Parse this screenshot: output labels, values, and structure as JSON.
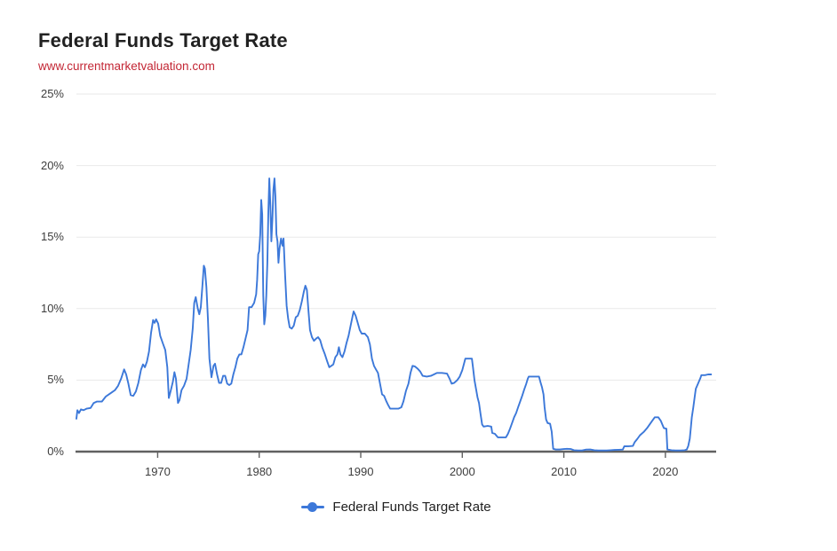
{
  "header": {
    "title": "Federal Funds Target Rate",
    "source_url": "www.currentmarketvaluation.com",
    "menu_icon": "hamburger-icon"
  },
  "legend": {
    "label": "Federal Funds Target Rate",
    "marker_color": "#3c78d9"
  },
  "colors": {
    "line": "#3c78d9",
    "title": "#212121",
    "url": "#c32735",
    "grid": "#e9e9e9",
    "baseline": "#616161",
    "axis_text": "#3d3d3d",
    "menu_icon": "#58595b"
  },
  "chart_data": {
    "type": "line",
    "title": "Federal Funds Target Rate",
    "xlabel": "",
    "ylabel": "",
    "xlim": [
      1962,
      2025
    ],
    "ylim": [
      0,
      25
    ],
    "x_ticks": [
      1970,
      1980,
      1990,
      2000,
      2010,
      2020
    ],
    "x_tick_labels": [
      "1970",
      "1980",
      "1990",
      "2000",
      "2010",
      "2020"
    ],
    "y_ticks": [
      0,
      5,
      10,
      15,
      20,
      25
    ],
    "y_tick_labels": [
      "0%",
      "5%",
      "10%",
      "15%",
      "20%",
      "25%"
    ],
    "grid": "horizontal",
    "legend_position": "bottom",
    "series": [
      {
        "name": "Federal Funds Target Rate",
        "color": "#3c78d9",
        "points": [
          [
            1962.0,
            2.3
          ],
          [
            1962.1,
            2.9
          ],
          [
            1962.25,
            2.7
          ],
          [
            1962.45,
            2.95
          ],
          [
            1962.7,
            2.9
          ],
          [
            1963.0,
            3.0
          ],
          [
            1963.4,
            3.05
          ],
          [
            1963.7,
            3.4
          ],
          [
            1964.0,
            3.5
          ],
          [
            1964.5,
            3.5
          ],
          [
            1964.9,
            3.85
          ],
          [
            1965.3,
            4.05
          ],
          [
            1965.8,
            4.3
          ],
          [
            1966.1,
            4.6
          ],
          [
            1966.4,
            5.1
          ],
          [
            1966.7,
            5.75
          ],
          [
            1966.9,
            5.4
          ],
          [
            1967.1,
            4.8
          ],
          [
            1967.35,
            3.95
          ],
          [
            1967.6,
            3.9
          ],
          [
            1967.85,
            4.2
          ],
          [
            1968.1,
            4.8
          ],
          [
            1968.35,
            5.7
          ],
          [
            1968.55,
            6.1
          ],
          [
            1968.75,
            5.9
          ],
          [
            1968.95,
            6.3
          ],
          [
            1969.15,
            7.0
          ],
          [
            1969.35,
            8.3
          ],
          [
            1969.55,
            9.2
          ],
          [
            1969.7,
            9.0
          ],
          [
            1969.85,
            9.25
          ],
          [
            1970.05,
            8.95
          ],
          [
            1970.25,
            8.1
          ],
          [
            1970.5,
            7.6
          ],
          [
            1970.75,
            7.1
          ],
          [
            1970.95,
            5.9
          ],
          [
            1971.1,
            3.75
          ],
          [
            1971.3,
            4.3
          ],
          [
            1971.5,
            4.9
          ],
          [
            1971.65,
            5.55
          ],
          [
            1971.8,
            5.1
          ],
          [
            1972.0,
            3.4
          ],
          [
            1972.15,
            3.6
          ],
          [
            1972.35,
            4.3
          ],
          [
            1972.6,
            4.6
          ],
          [
            1972.85,
            5.1
          ],
          [
            1973.05,
            6.1
          ],
          [
            1973.25,
            7.1
          ],
          [
            1973.45,
            8.6
          ],
          [
            1973.6,
            10.4
          ],
          [
            1973.75,
            10.8
          ],
          [
            1973.95,
            10.0
          ],
          [
            1974.1,
            9.6
          ],
          [
            1974.25,
            10.1
          ],
          [
            1974.4,
            11.5
          ],
          [
            1974.55,
            13.0
          ],
          [
            1974.65,
            12.8
          ],
          [
            1974.8,
            11.5
          ],
          [
            1974.95,
            9.3
          ],
          [
            1975.1,
            6.5
          ],
          [
            1975.3,
            5.2
          ],
          [
            1975.5,
            6.0
          ],
          [
            1975.65,
            6.15
          ],
          [
            1975.85,
            5.4
          ],
          [
            1976.05,
            4.8
          ],
          [
            1976.25,
            4.8
          ],
          [
            1976.45,
            5.3
          ],
          [
            1976.65,
            5.3
          ],
          [
            1976.85,
            4.75
          ],
          [
            1977.05,
            4.65
          ],
          [
            1977.25,
            4.75
          ],
          [
            1977.45,
            5.4
          ],
          [
            1977.65,
            5.9
          ],
          [
            1977.85,
            6.5
          ],
          [
            1978.05,
            6.8
          ],
          [
            1978.25,
            6.8
          ],
          [
            1978.45,
            7.3
          ],
          [
            1978.65,
            7.9
          ],
          [
            1978.85,
            8.5
          ],
          [
            1979.0,
            10.1
          ],
          [
            1979.25,
            10.1
          ],
          [
            1979.5,
            10.4
          ],
          [
            1979.7,
            11.0
          ],
          [
            1979.8,
            12.0
          ],
          [
            1979.9,
            13.8
          ],
          [
            1980.0,
            14.0
          ],
          [
            1980.1,
            15.2
          ],
          [
            1980.2,
            17.6
          ],
          [
            1980.3,
            16.6
          ],
          [
            1980.4,
            10.9
          ],
          [
            1980.5,
            8.9
          ],
          [
            1980.6,
            9.5
          ],
          [
            1980.7,
            10.9
          ],
          [
            1980.8,
            13.2
          ],
          [
            1980.9,
            16.7
          ],
          [
            1981.0,
            19.1
          ],
          [
            1981.1,
            17.2
          ],
          [
            1981.2,
            14.7
          ],
          [
            1981.3,
            16.3
          ],
          [
            1981.4,
            18.3
          ],
          [
            1981.5,
            19.1
          ],
          [
            1981.6,
            17.8
          ],
          [
            1981.7,
            15.2
          ],
          [
            1981.8,
            14.7
          ],
          [
            1981.9,
            13.2
          ],
          [
            1982.0,
            14.2
          ],
          [
            1982.15,
            14.9
          ],
          [
            1982.3,
            14.4
          ],
          [
            1982.4,
            14.9
          ],
          [
            1982.55,
            12.3
          ],
          [
            1982.7,
            10.2
          ],
          [
            1982.85,
            9.3
          ],
          [
            1983.0,
            8.7
          ],
          [
            1983.2,
            8.6
          ],
          [
            1983.4,
            8.8
          ],
          [
            1983.6,
            9.4
          ],
          [
            1983.8,
            9.5
          ],
          [
            1984.0,
            9.9
          ],
          [
            1984.2,
            10.5
          ],
          [
            1984.4,
            11.2
          ],
          [
            1984.55,
            11.6
          ],
          [
            1984.7,
            11.3
          ],
          [
            1984.85,
            9.9
          ],
          [
            1985.0,
            8.5
          ],
          [
            1985.2,
            8.0
          ],
          [
            1985.4,
            7.75
          ],
          [
            1985.6,
            7.9
          ],
          [
            1985.8,
            8.0
          ],
          [
            1986.0,
            7.8
          ],
          [
            1986.2,
            7.3
          ],
          [
            1986.45,
            6.85
          ],
          [
            1986.7,
            6.3
          ],
          [
            1986.9,
            5.9
          ],
          [
            1987.1,
            6.0
          ],
          [
            1987.3,
            6.1
          ],
          [
            1987.5,
            6.6
          ],
          [
            1987.7,
            6.8
          ],
          [
            1987.85,
            7.3
          ],
          [
            1988.0,
            6.8
          ],
          [
            1988.2,
            6.6
          ],
          [
            1988.4,
            7.0
          ],
          [
            1988.6,
            7.6
          ],
          [
            1988.8,
            8.1
          ],
          [
            1989.0,
            8.8
          ],
          [
            1989.2,
            9.5
          ],
          [
            1989.3,
            9.8
          ],
          [
            1989.5,
            9.5
          ],
          [
            1989.7,
            9.0
          ],
          [
            1989.9,
            8.5
          ],
          [
            1990.1,
            8.25
          ],
          [
            1990.4,
            8.25
          ],
          [
            1990.7,
            8.0
          ],
          [
            1990.9,
            7.5
          ],
          [
            1991.1,
            6.5
          ],
          [
            1991.3,
            6.0
          ],
          [
            1991.5,
            5.75
          ],
          [
            1991.7,
            5.5
          ],
          [
            1991.9,
            4.75
          ],
          [
            1992.1,
            4.0
          ],
          [
            1992.3,
            3.9
          ],
          [
            1992.5,
            3.55
          ],
          [
            1992.7,
            3.25
          ],
          [
            1992.9,
            3.0
          ],
          [
            1993.3,
            3.0
          ],
          [
            1993.7,
            3.0
          ],
          [
            1994.0,
            3.1
          ],
          [
            1994.2,
            3.5
          ],
          [
            1994.45,
            4.25
          ],
          [
            1994.7,
            4.75
          ],
          [
            1994.9,
            5.5
          ],
          [
            1995.1,
            6.0
          ],
          [
            1995.35,
            5.95
          ],
          [
            1995.6,
            5.8
          ],
          [
            1995.85,
            5.6
          ],
          [
            1996.1,
            5.3
          ],
          [
            1996.5,
            5.25
          ],
          [
            1996.9,
            5.3
          ],
          [
            1997.2,
            5.4
          ],
          [
            1997.5,
            5.5
          ],
          [
            1998.0,
            5.5
          ],
          [
            1998.5,
            5.45
          ],
          [
            1998.75,
            5.1
          ],
          [
            1998.95,
            4.75
          ],
          [
            1999.2,
            4.8
          ],
          [
            1999.5,
            5.0
          ],
          [
            1999.75,
            5.25
          ],
          [
            2000.0,
            5.7
          ],
          [
            2000.3,
            6.5
          ],
          [
            2000.6,
            6.5
          ],
          [
            2000.95,
            6.5
          ],
          [
            2001.05,
            5.9
          ],
          [
            2001.2,
            5.0
          ],
          [
            2001.35,
            4.4
          ],
          [
            2001.5,
            3.8
          ],
          [
            2001.65,
            3.4
          ],
          [
            2001.8,
            2.6
          ],
          [
            2001.95,
            1.9
          ],
          [
            2002.1,
            1.75
          ],
          [
            2002.5,
            1.8
          ],
          [
            2002.85,
            1.75
          ],
          [
            2002.95,
            1.3
          ],
          [
            2003.2,
            1.25
          ],
          [
            2003.5,
            1.0
          ],
          [
            2003.9,
            1.0
          ],
          [
            2004.3,
            1.0
          ],
          [
            2004.5,
            1.25
          ],
          [
            2004.7,
            1.6
          ],
          [
            2004.9,
            2.0
          ],
          [
            2005.1,
            2.4
          ],
          [
            2005.3,
            2.7
          ],
          [
            2005.5,
            3.1
          ],
          [
            2005.7,
            3.5
          ],
          [
            2005.9,
            3.9
          ],
          [
            2006.1,
            4.35
          ],
          [
            2006.3,
            4.75
          ],
          [
            2006.45,
            5.1
          ],
          [
            2006.55,
            5.25
          ],
          [
            2007.0,
            5.25
          ],
          [
            2007.55,
            5.25
          ],
          [
            2007.7,
            4.85
          ],
          [
            2007.85,
            4.5
          ],
          [
            2008.0,
            4.0
          ],
          [
            2008.1,
            3.1
          ],
          [
            2008.25,
            2.25
          ],
          [
            2008.4,
            2.0
          ],
          [
            2008.65,
            1.95
          ],
          [
            2008.8,
            1.4
          ],
          [
            2008.95,
            0.2
          ],
          [
            2009.2,
            0.15
          ],
          [
            2009.6,
            0.15
          ],
          [
            2010.0,
            0.18
          ],
          [
            2010.3,
            0.2
          ],
          [
            2010.7,
            0.18
          ],
          [
            2011.0,
            0.1
          ],
          [
            2011.4,
            0.08
          ],
          [
            2011.8,
            0.08
          ],
          [
            2012.2,
            0.14
          ],
          [
            2012.6,
            0.15
          ],
          [
            2013.0,
            0.1
          ],
          [
            2013.4,
            0.08
          ],
          [
            2013.8,
            0.08
          ],
          [
            2014.2,
            0.08
          ],
          [
            2014.6,
            0.1
          ],
          [
            2015.0,
            0.12
          ],
          [
            2015.4,
            0.13
          ],
          [
            2015.8,
            0.14
          ],
          [
            2015.95,
            0.37
          ],
          [
            2016.4,
            0.38
          ],
          [
            2016.8,
            0.4
          ],
          [
            2016.97,
            0.65
          ],
          [
            2017.25,
            0.9
          ],
          [
            2017.5,
            1.15
          ],
          [
            2017.9,
            1.4
          ],
          [
            2018.2,
            1.65
          ],
          [
            2018.45,
            1.9
          ],
          [
            2018.7,
            2.15
          ],
          [
            2018.95,
            2.4
          ],
          [
            2019.3,
            2.4
          ],
          [
            2019.55,
            2.15
          ],
          [
            2019.7,
            1.9
          ],
          [
            2019.85,
            1.65
          ],
          [
            2020.1,
            1.6
          ],
          [
            2020.2,
            0.15
          ],
          [
            2020.6,
            0.1
          ],
          [
            2021.0,
            0.08
          ],
          [
            2021.5,
            0.08
          ],
          [
            2021.9,
            0.1
          ],
          [
            2022.1,
            0.15
          ],
          [
            2022.25,
            0.4
          ],
          [
            2022.4,
            0.9
          ],
          [
            2022.5,
            1.6
          ],
          [
            2022.6,
            2.4
          ],
          [
            2022.75,
            3.1
          ],
          [
            2022.9,
            3.9
          ],
          [
            2023.0,
            4.4
          ],
          [
            2023.15,
            4.65
          ],
          [
            2023.3,
            4.9
          ],
          [
            2023.45,
            5.15
          ],
          [
            2023.55,
            5.35
          ],
          [
            2023.9,
            5.35
          ],
          [
            2024.2,
            5.4
          ],
          [
            2024.5,
            5.4
          ]
        ]
      }
    ]
  }
}
